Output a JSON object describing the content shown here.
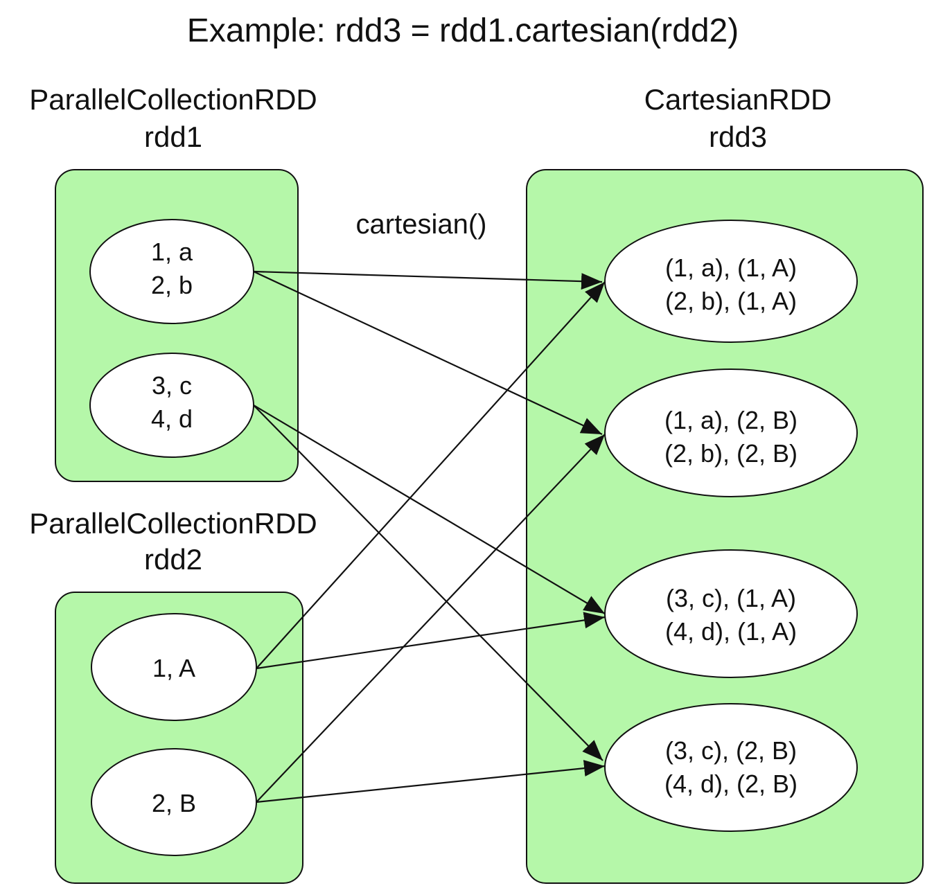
{
  "title": "Example: rdd3 = rdd1.cartesian(rdd2)",
  "operation_label": "cartesian()",
  "colors": {
    "container_fill": "#b5f7a9",
    "stroke": "#111111",
    "partition_fill": "#ffffff",
    "background": "#ffffff"
  },
  "rdd1": {
    "type_label": "ParallelCollectionRDD",
    "name": "rdd1",
    "partitions": [
      {
        "lines": [
          "1, a",
          "2, b"
        ]
      },
      {
        "lines": [
          "3, c",
          "4, d"
        ]
      }
    ]
  },
  "rdd2": {
    "type_label": "ParallelCollectionRDD",
    "name": "rdd2",
    "partitions": [
      {
        "lines": [
          "1, A"
        ]
      },
      {
        "lines": [
          "2, B"
        ]
      }
    ]
  },
  "rdd3": {
    "type_label": "CartesianRDD",
    "name": "rdd3",
    "partitions": [
      {
        "lines": [
          "(1, a), (1, A)",
          "(2, b), (1, A)"
        ]
      },
      {
        "lines": [
          "(1, a), (2, B)",
          "(2, b), (2, B)"
        ]
      },
      {
        "lines": [
          "(3, c), (1, A)",
          "(4, d), (1, A)"
        ]
      },
      {
        "lines": [
          "(3, c), (2, B)",
          "(4, d), (2, B)"
        ]
      }
    ]
  },
  "dependencies": [
    {
      "from": "rdd1.0",
      "to": "rdd3.0"
    },
    {
      "from": "rdd1.0",
      "to": "rdd3.1"
    },
    {
      "from": "rdd1.1",
      "to": "rdd3.2"
    },
    {
      "from": "rdd1.1",
      "to": "rdd3.3"
    },
    {
      "from": "rdd2.0",
      "to": "rdd3.0"
    },
    {
      "from": "rdd2.0",
      "to": "rdd3.2"
    },
    {
      "from": "rdd2.1",
      "to": "rdd3.1"
    },
    {
      "from": "rdd2.1",
      "to": "rdd3.3"
    }
  ]
}
